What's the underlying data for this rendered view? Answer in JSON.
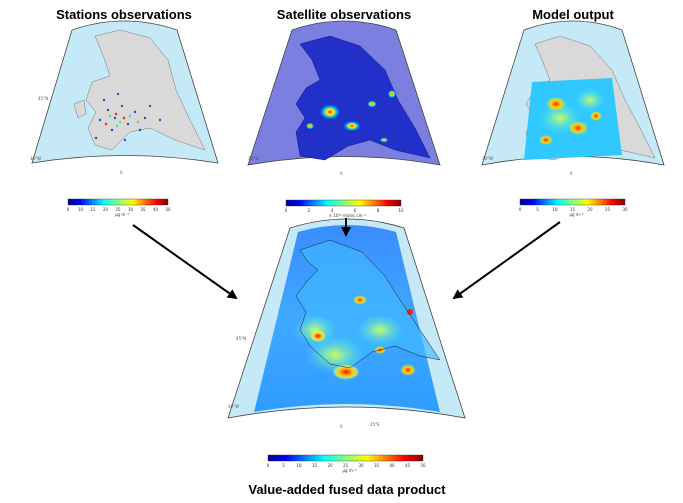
{
  "titles": {
    "stations": "Stations observations",
    "satellite": "Satellite observations",
    "model": "Model output",
    "fused": "Value-added fused data product"
  },
  "colorbars": {
    "stations": {
      "ticks": [
        "0",
        "10",
        "15",
        "20",
        "25",
        "30",
        "35",
        "40",
        "50"
      ],
      "unit": "µg m⁻³"
    },
    "satellite": {
      "ticks": [
        "0",
        "2",
        "4",
        "6",
        "8",
        "10"
      ],
      "unit": "× 10¹⁵ molec cm⁻²"
    },
    "model": {
      "ticks": [
        "0",
        "5",
        "10",
        "15",
        "20",
        "25",
        "30"
      ],
      "unit": "µg m⁻³"
    },
    "fused": {
      "ticks": [
        "0",
        "5",
        "10",
        "15",
        "20",
        "25",
        "30",
        "35",
        "40",
        "45",
        "50"
      ],
      "unit": "µg m⁻³"
    }
  },
  "colors": {
    "ocean": "#c6e9f7",
    "land": "#d9d9d9",
    "arrow": "#000000",
    "jet": [
      "#00008f",
      "#0000ff",
      "#0080ff",
      "#00ffff",
      "#80ff80",
      "#ffff00",
      "#ff8000",
      "#ff0000",
      "#800000"
    ]
  }
}
